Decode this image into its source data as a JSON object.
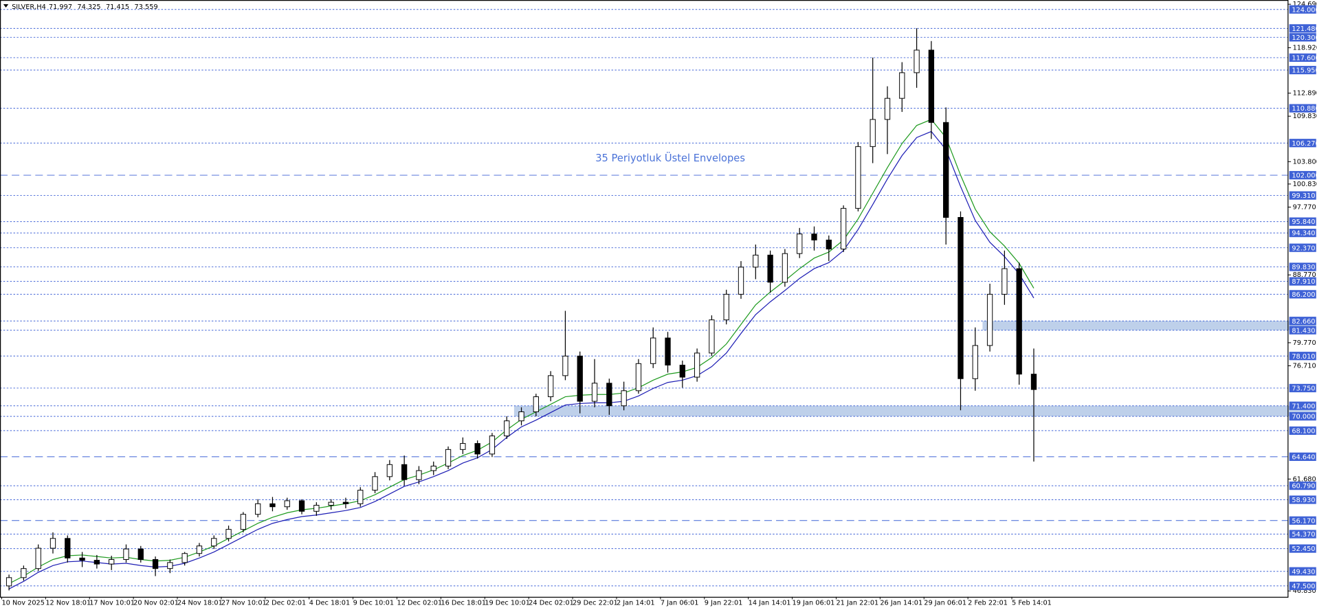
{
  "chart_data": {
    "type": "candlestick",
    "title": "SILVER,H4",
    "header_values": [
      71.997,
      74.325,
      71.415,
      73.559
    ],
    "annotation": "35 Periyotluk Üstel Envelopes",
    "categories": [
      "10 Nov 2025",
      null,
      null,
      "12 Nov 18:01",
      null,
      null,
      "17 Nov 10:01",
      null,
      null,
      "20 Nov 02:01",
      null,
      null,
      "24 Nov 18:01",
      null,
      null,
      "27 Nov 10:01",
      null,
      null,
      "2 Dec 02:01",
      null,
      null,
      "4 Dec 18:01",
      null,
      null,
      "9 Dec 10:01",
      null,
      null,
      "12 Dec 02:01",
      null,
      null,
      "16 Dec 18:01",
      null,
      null,
      "19 Dec 10:01",
      null,
      null,
      "24 Dec 02:01",
      null,
      null,
      "29 Dec 22:01",
      null,
      null,
      "2 Jan 14:01",
      null,
      null,
      "7 Jan 06:01",
      null,
      null,
      "9 Jan 22:01",
      null,
      null,
      "14 Jan 14:01",
      null,
      null,
      "19 Jan 06:01",
      null,
      null,
      "21 Jan 22:01",
      null,
      null,
      "26 Jan 14:01",
      null,
      null,
      "29 Jan 06:01",
      null,
      null,
      "2 Feb 22:01",
      null,
      null,
      "5 Feb 14:01",
      null
    ],
    "open": [
      47.5,
      48.6,
      49.8,
      52.5,
      53.8,
      51.2,
      50.9,
      50.4,
      51.0,
      52.4,
      51.0,
      49.8,
      50.6,
      51.8,
      52.8,
      53.8,
      55.0,
      57.0,
      58.4,
      58.0,
      58.8,
      57.4,
      58.2,
      58.6,
      58.4,
      60.2,
      62.0,
      63.6,
      61.6,
      62.8,
      63.4,
      65.6,
      66.4,
      65.0,
      67.4,
      69.4,
      70.6,
      72.6,
      75.4,
      78.0,
      72.0,
      74.4,
      71.4,
      73.4,
      77.0,
      80.4,
      76.8,
      75.2,
      78.4,
      82.8,
      86.2,
      89.8,
      91.4,
      87.8,
      91.6,
      94.2,
      93.4,
      92.2,
      97.6,
      105.8,
      109.4,
      112.2,
      115.6,
      118.6,
      109.0,
      96.4,
      75.0,
      79.4,
      86.2,
      89.6,
      75.6
    ],
    "high": [
      49.0,
      50.2,
      53.0,
      54.6,
      54.2,
      52.0,
      51.6,
      51.5,
      53.0,
      52.8,
      51.4,
      51.0,
      52.0,
      53.2,
      54.2,
      55.5,
      57.3,
      59.0,
      59.3,
      59.2,
      59.0,
      58.6,
      59.0,
      59.2,
      60.6,
      62.6,
      64.2,
      64.8,
      63.4,
      64.0,
      66.0,
      67.2,
      66.8,
      67.8,
      70.0,
      71.2,
      73.0,
      76.0,
      84.0,
      78.6,
      77.6,
      75.0,
      74.6,
      77.6,
      81.8,
      81.2,
      77.4,
      79.0,
      83.4,
      86.8,
      90.6,
      92.8,
      92.0,
      92.2,
      95.0,
      95.2,
      94.0,
      98.0,
      106.4,
      117.6,
      113.8,
      117.0,
      121.5,
      119.8,
      111.0,
      97.2,
      81.8,
      87.6,
      92.0,
      90.4,
      79.0
    ],
    "low": [
      46.9,
      48.2,
      49.5,
      51.8,
      50.6,
      50.0,
      49.8,
      49.6,
      50.6,
      50.6,
      48.8,
      49.2,
      50.2,
      51.4,
      52.4,
      53.4,
      54.6,
      56.6,
      57.4,
      57.6,
      57.0,
      56.8,
      57.6,
      57.8,
      58.0,
      59.8,
      61.5,
      60.8,
      61.0,
      62.2,
      63.0,
      65.0,
      64.4,
      64.6,
      67.0,
      68.8,
      70.0,
      72.0,
      74.8,
      70.4,
      71.2,
      70.2,
      70.8,
      73.0,
      76.4,
      75.8,
      73.8,
      74.6,
      78.0,
      82.2,
      85.6,
      88.2,
      86.4,
      87.2,
      91.0,
      92.0,
      90.6,
      91.8,
      97.2,
      103.6,
      104.8,
      110.4,
      113.6,
      106.8,
      92.8,
      70.8,
      73.4,
      78.6,
      84.8,
      74.2,
      64.0
    ],
    "close": [
      48.6,
      49.8,
      52.5,
      53.8,
      51.2,
      50.9,
      50.4,
      51.0,
      52.4,
      51.0,
      49.8,
      50.6,
      51.8,
      52.8,
      53.8,
      55.0,
      57.0,
      58.4,
      58.0,
      58.8,
      57.4,
      58.2,
      58.6,
      58.4,
      60.2,
      62.0,
      63.6,
      61.6,
      62.8,
      63.4,
      65.6,
      66.4,
      65.0,
      67.4,
      69.4,
      70.6,
      72.6,
      75.4,
      78.0,
      72.0,
      74.4,
      71.4,
      73.4,
      77.0,
      80.4,
      76.8,
      75.2,
      78.4,
      82.8,
      86.2,
      89.8,
      91.4,
      87.8,
      91.6,
      94.2,
      93.4,
      92.2,
      97.6,
      105.8,
      109.4,
      112.2,
      115.6,
      118.6,
      109.0,
      96.4,
      75.0,
      79.4,
      86.2,
      89.6,
      75.6,
      73.559
    ],
    "envelopes": [
      {
        "color": "#1e9a1e",
        "values": [
          47.8,
          48.8,
          50.0,
          51.0,
          51.5,
          51.6,
          51.4,
          51.2,
          51.3,
          51.0,
          50.8,
          50.9,
          51.3,
          52.0,
          52.8,
          53.8,
          54.8,
          55.8,
          56.6,
          57.2,
          57.6,
          57.8,
          58.1,
          58.4,
          58.8,
          59.6,
          60.6,
          61.6,
          62.2,
          62.9,
          63.8,
          64.8,
          65.5,
          66.6,
          68.2,
          69.6,
          70.6,
          71.6,
          72.6,
          72.8,
          72.9,
          72.9,
          73.1,
          73.8,
          74.8,
          75.6,
          75.9,
          76.5,
          77.8,
          79.6,
          82.2,
          84.8,
          86.5,
          88.0,
          89.6,
          91.0,
          91.8,
          93.4,
          96.2,
          99.6,
          103.0,
          106.2,
          108.6,
          109.4,
          107.0,
          102.0,
          97.5,
          94.5,
          92.6,
          90.3,
          87.0
        ]
      },
      {
        "color": "#1c1cb4",
        "values": [
          47.1,
          48.1,
          49.3,
          50.2,
          50.7,
          50.8,
          50.6,
          50.4,
          50.5,
          50.2,
          50.0,
          50.1,
          50.5,
          51.2,
          52.0,
          53.0,
          54.0,
          55.0,
          55.8,
          56.3,
          56.7,
          56.9,
          57.2,
          57.5,
          57.9,
          58.7,
          59.7,
          60.7,
          61.3,
          62.0,
          62.8,
          63.8,
          64.5,
          65.6,
          67.2,
          68.6,
          69.5,
          70.5,
          71.5,
          71.7,
          71.8,
          71.8,
          72.0,
          72.7,
          73.7,
          74.5,
          74.8,
          75.4,
          76.6,
          78.4,
          81.0,
          83.5,
          85.2,
          86.7,
          88.3,
          89.6,
          90.4,
          92.0,
          94.8,
          98.1,
          101.5,
          104.6,
          107.0,
          107.8,
          105.4,
          100.5,
          96.0,
          93.1,
          91.2,
          88.9,
          85.7
        ]
      }
    ],
    "ylim": [
      46.05,
      125.25
    ],
    "yticks": [
      {
        "value": 124.69,
        "label": "124.690"
      },
      {
        "value": 118.92,
        "label": "118.920"
      },
      {
        "value": 112.89,
        "label": "112.890"
      },
      {
        "value": 109.83,
        "label": "109.830"
      },
      {
        "value": 103.8,
        "label": "103.800"
      },
      {
        "value": 100.83,
        "label": "100.830"
      },
      {
        "value": 97.77,
        "label": "97.770"
      },
      {
        "value": 88.77,
        "label": "88.770"
      },
      {
        "value": 79.77,
        "label": "79.770"
      },
      {
        "value": 76.71,
        "label": "76.710"
      },
      {
        "value": 61.68,
        "label": "61.680"
      },
      {
        "value": 46.83,
        "label": "46.830"
      }
    ],
    "level_color": "#3f62d6",
    "levels": [
      {
        "value": 124.0,
        "label": "124.000",
        "style": "dotted"
      },
      {
        "value": 121.48,
        "label": "121.480",
        "style": "dotted"
      },
      {
        "value": 120.3,
        "label": "120.300",
        "style": "dotted"
      },
      {
        "value": 117.6,
        "label": "117.600",
        "style": "dotted"
      },
      {
        "value": 115.95,
        "label": "115.950",
        "style": "dotted"
      },
      {
        "value": 110.88,
        "label": "110.880",
        "style": "dotted"
      },
      {
        "value": 106.27,
        "label": "106.270",
        "style": "dotted"
      },
      {
        "value": 102.0,
        "label": "102.000",
        "style": "dashed"
      },
      {
        "value": 99.31,
        "label": "99.310",
        "style": "dotted"
      },
      {
        "value": 95.84,
        "label": "95.840",
        "style": "dotted"
      },
      {
        "value": 94.34,
        "label": "94.340",
        "style": "dotted"
      },
      {
        "value": 92.37,
        "label": "92.370",
        "style": "dotted"
      },
      {
        "value": 89.83,
        "label": "89.830",
        "style": "dotted"
      },
      {
        "value": 87.91,
        "label": "87.910",
        "style": "dotted"
      },
      {
        "value": 86.2,
        "label": "86.200",
        "style": "dotted"
      },
      {
        "value": 82.66,
        "label": "82.660",
        "style": "dotted"
      },
      {
        "value": 81.43,
        "label": "81.430",
        "style": "dotted"
      },
      {
        "value": 78.01,
        "label": "78.010",
        "style": "dotted"
      },
      {
        "value": 73.75,
        "label": "73.750",
        "style": "dotted"
      },
      {
        "value": 71.4,
        "label": "71.400",
        "style": "dotted"
      },
      {
        "value": 70.0,
        "label": "70.000",
        "style": "dotted"
      },
      {
        "value": 68.1,
        "label": "68.100",
        "style": "dotted"
      },
      {
        "value": 64.64,
        "label": "64.640",
        "style": "dashed"
      },
      {
        "value": 60.79,
        "label": "60.790",
        "style": "dotted"
      },
      {
        "value": 58.93,
        "label": "58.930",
        "style": "dotted"
      },
      {
        "value": 56.17,
        "label": "56.170",
        "style": "dashed"
      },
      {
        "value": 54.37,
        "label": "54.370",
        "style": "dotted"
      },
      {
        "value": 52.45,
        "label": "52.450",
        "style": "dotted"
      },
      {
        "value": 49.43,
        "label": "49.430",
        "style": "dotted"
      },
      {
        "value": 47.5,
        "label": "47.500",
        "style": "dotted"
      }
    ],
    "zone_color": "#b7cbe8",
    "zones": [
      {
        "start": 35,
        "low": 70.0,
        "high": 71.4
      },
      {
        "start": 67,
        "low": 81.43,
        "high": 82.66
      }
    ]
  }
}
